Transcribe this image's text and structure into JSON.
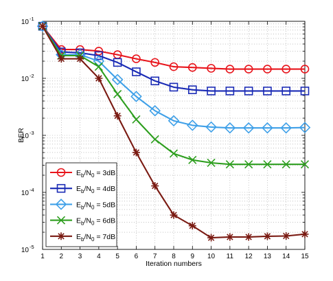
{
  "chart_data": {
    "type": "line",
    "title": "",
    "xlabel": "Iteration numbers",
    "ylabel": "BER",
    "x": [
      1,
      2,
      3,
      4,
      5,
      6,
      7,
      8,
      9,
      10,
      11,
      12,
      13,
      14,
      15
    ],
    "xlim": [
      1,
      15
    ],
    "ylim": [
      1e-05,
      0.1
    ],
    "yscale": "log",
    "grid": true,
    "legend_position": "bottom-left",
    "x_ticks": [
      "1",
      "2",
      "3",
      "4",
      "5",
      "6",
      "7",
      "8",
      "9",
      "10",
      "11",
      "12",
      "13",
      "14",
      "15"
    ],
    "y_ticks": [
      {
        "value": 0.1,
        "base": "10",
        "exp": "-1"
      },
      {
        "value": 0.01,
        "base": "10",
        "exp": "-2"
      },
      {
        "value": 0.001,
        "base": "10",
        "exp": "-3"
      },
      {
        "value": 0.0001,
        "base": "10",
        "exp": "-4"
      },
      {
        "value": 1e-05,
        "base": "10",
        "exp": "-5"
      }
    ],
    "series": [
      {
        "name": "Eb/N0 = 3dB",
        "label_main": "E",
        "label_sub1": "b",
        "label_mid": "/N",
        "label_sub2": "0",
        "label_tail": " = 3dB",
        "color": "#e8141b",
        "marker": "circle",
        "values": [
          0.082,
          0.032,
          0.032,
          0.03,
          0.026,
          0.022,
          0.019,
          0.016,
          0.0155,
          0.015,
          0.0145,
          0.0145,
          0.0145,
          0.0145,
          0.0145
        ]
      },
      {
        "name": "Eb/N0 = 4dB",
        "label_main": "E",
        "label_sub1": "b",
        "label_mid": "/N",
        "label_sub2": "0",
        "label_tail": " = 4dB",
        "color": "#1a2bb5",
        "marker": "square",
        "values": [
          0.082,
          0.029,
          0.028,
          0.025,
          0.019,
          0.013,
          0.009,
          0.007,
          0.0063,
          0.006,
          0.006,
          0.006,
          0.006,
          0.006,
          0.006
        ]
      },
      {
        "name": "Eb/N0 = 5dB",
        "label_main": "E",
        "label_sub1": "b",
        "label_mid": "/N",
        "label_sub2": "0",
        "label_tail": " = 5dB",
        "color": "#3fa0e8",
        "marker": "diamond",
        "values": [
          0.082,
          0.026,
          0.026,
          0.02,
          0.0095,
          0.0048,
          0.0027,
          0.0018,
          0.0015,
          0.0014,
          0.00135,
          0.00135,
          0.00135,
          0.00135,
          0.00137
        ]
      },
      {
        "name": "Eb/N0 = 6dB",
        "label_main": "E",
        "label_sub1": "b",
        "label_mid": "/N",
        "label_sub2": "0",
        "label_tail": " = 6dB",
        "color": "#2d9e1e",
        "marker": "x",
        "values": [
          0.082,
          0.025,
          0.025,
          0.016,
          0.0053,
          0.0019,
          0.00085,
          0.00048,
          0.00037,
          0.00033,
          0.00031,
          0.00031,
          0.00031,
          0.00031,
          0.00031
        ]
      },
      {
        "name": "Eb/N0 = 7dB",
        "label_main": "E",
        "label_sub1": "b",
        "label_mid": "/N",
        "label_sub2": "0",
        "label_tail": " = 7dB",
        "color": "#7a1a12",
        "marker": "star",
        "values": [
          0.082,
          0.022,
          0.022,
          0.01,
          0.0022,
          0.0005,
          0.00013,
          4e-05,
          2.6e-05,
          1.6e-05,
          1.65e-05,
          1.65e-05,
          1.7e-05,
          1.72e-05,
          1.85e-05
        ]
      }
    ]
  }
}
